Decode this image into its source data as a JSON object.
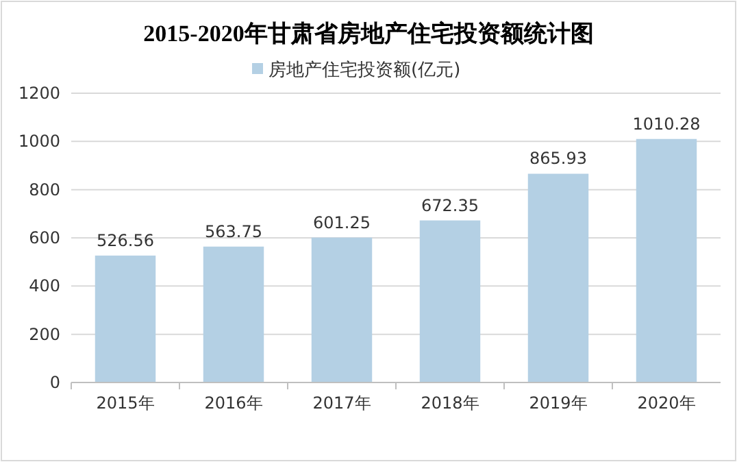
{
  "chart_data": {
    "type": "bar",
    "title": "2015-2020年甘肃省房地产住宅投资额统计图",
    "categories": [
      "2015年",
      "2016年",
      "2017年",
      "2018年",
      "2019年",
      "2020年"
    ],
    "series": [
      {
        "name": "房地产住宅投资额(亿元)",
        "color": "#b4d0e4",
        "values": [
          526.56,
          563.75,
          601.25,
          672.35,
          865.93,
          1010.28
        ]
      }
    ],
    "ylim": [
      0,
      1200
    ],
    "yticks": [
      0,
      200,
      400,
      600,
      800,
      1000,
      1200
    ],
    "grid": "y",
    "legend": "top",
    "data_labels": true
  }
}
